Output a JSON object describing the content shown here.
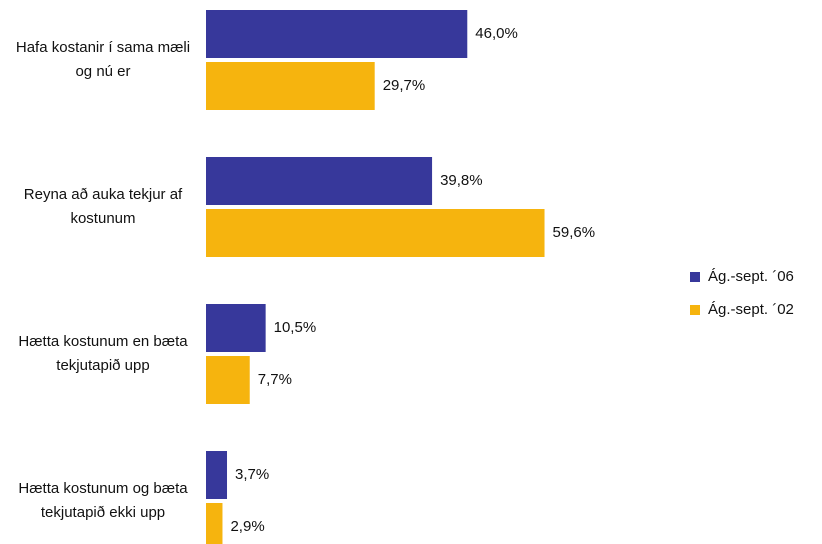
{
  "chart_data": {
    "type": "hbar",
    "categories": [
      "Hafa kostanir í sama mæli og nú er",
      "Reyna að auka tekjur af kostunum",
      "Hætta kostunum en bæta tekjutapið upp",
      "Hætta kostunum og bæta tekjutapið ekki upp"
    ],
    "series": [
      {
        "name": "Ág.-sept. ´06",
        "color": "#37389b",
        "values": [
          46.0,
          39.8,
          10.5,
          3.7
        ],
        "value_labels": [
          "46,0%",
          "39,8%",
          "10,5%",
          "3,7%"
        ]
      },
      {
        "name": "Ág.-sept. ´02",
        "color": "#f6b40e",
        "values": [
          29.7,
          59.6,
          7.7,
          2.9
        ],
        "value_labels": [
          "29,7%",
          "59,6%",
          "7,7%",
          "2,9%"
        ]
      }
    ],
    "legend": "right"
  }
}
